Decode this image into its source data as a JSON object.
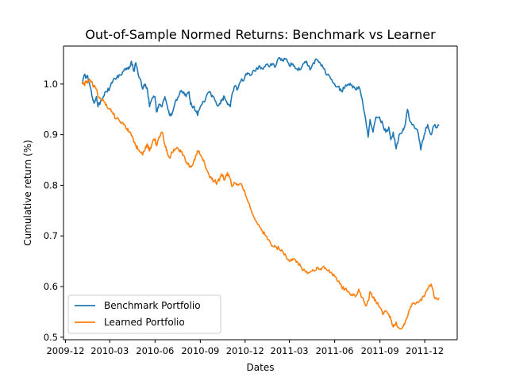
{
  "chart_data": {
    "type": "line",
    "title": "Out-of-Sample Normed Returns: Benchmark vs Learner",
    "xlabel": "Dates",
    "ylabel": "Cumulative return (%)",
    "x_start": "2010-01-04",
    "x_end": "2011-12-30",
    "xlim": [
      "2009-11-27",
      "2012-02-05"
    ],
    "ylim": [
      0.495,
      1.075
    ],
    "x_ticks": [
      {
        "date": "2009-12-01",
        "label": "2009-12"
      },
      {
        "date": "2010-03-01",
        "label": "2010-03"
      },
      {
        "date": "2010-06-01",
        "label": "2010-06"
      },
      {
        "date": "2010-09-01",
        "label": "2010-09"
      },
      {
        "date": "2010-12-01",
        "label": "2010-12"
      },
      {
        "date": "2011-03-01",
        "label": "2011-03"
      },
      {
        "date": "2011-06-01",
        "label": "2011-06"
      },
      {
        "date": "2011-09-01",
        "label": "2011-09"
      },
      {
        "date": "2011-12-01",
        "label": "2011-12"
      }
    ],
    "y_ticks": [
      {
        "value": 0.5,
        "label": "0.5"
      },
      {
        "value": 0.6,
        "label": "0.6"
      },
      {
        "value": 0.7,
        "label": "0.7"
      },
      {
        "value": 0.8,
        "label": "0.8"
      },
      {
        "value": 0.9,
        "label": "0.9"
      },
      {
        "value": 1.0,
        "label": "1.0"
      }
    ],
    "grid": false,
    "legend_position": "lower-left",
    "series": [
      {
        "name": "Benchmark Portfolio",
        "color": "#1f77b4",
        "points": [
          [
            "2010-01-04",
            1.0
          ],
          [
            "2010-01-08",
            1.018
          ],
          [
            "2010-01-12",
            1.012
          ],
          [
            "2010-01-15",
            1.016
          ],
          [
            "2010-01-20",
            0.995
          ],
          [
            "2010-01-25",
            0.972
          ],
          [
            "2010-01-28",
            0.962
          ],
          [
            "2010-02-02",
            0.975
          ],
          [
            "2010-02-05",
            0.955
          ],
          [
            "2010-02-10",
            0.965
          ],
          [
            "2010-02-16",
            0.975
          ],
          [
            "2010-02-22",
            0.985
          ],
          [
            "2010-03-01",
            0.992
          ],
          [
            "2010-03-08",
            1.008
          ],
          [
            "2010-03-15",
            1.012
          ],
          [
            "2010-03-22",
            1.018
          ],
          [
            "2010-03-29",
            1.025
          ],
          [
            "2010-04-05",
            1.032
          ],
          [
            "2010-04-09",
            1.03
          ],
          [
            "2010-04-14",
            1.045
          ],
          [
            "2010-04-19",
            1.025
          ],
          [
            "2010-04-23",
            1.042
          ],
          [
            "2010-04-28",
            1.018
          ],
          [
            "2010-05-03",
            1.008
          ],
          [
            "2010-05-07",
            0.99
          ],
          [
            "2010-05-12",
            1.0
          ],
          [
            "2010-05-17",
            0.985
          ],
          [
            "2010-05-21",
            0.955
          ],
          [
            "2010-05-26",
            0.972
          ],
          [
            "2010-06-01",
            0.975
          ],
          [
            "2010-06-04",
            0.945
          ],
          [
            "2010-06-09",
            0.96
          ],
          [
            "2010-06-15",
            0.955
          ],
          [
            "2010-06-21",
            0.975
          ],
          [
            "2010-06-25",
            0.96
          ],
          [
            "2010-06-30",
            0.94
          ],
          [
            "2010-07-06",
            0.942
          ],
          [
            "2010-07-12",
            0.965
          ],
          [
            "2010-07-19",
            0.975
          ],
          [
            "2010-07-23",
            0.985
          ],
          [
            "2010-07-28",
            0.983
          ],
          [
            "2010-08-03",
            0.975
          ],
          [
            "2010-08-09",
            0.985
          ],
          [
            "2010-08-12",
            0.96
          ],
          [
            "2010-08-18",
            0.955
          ],
          [
            "2010-08-24",
            0.945
          ],
          [
            "2010-08-27",
            0.94
          ],
          [
            "2010-09-01",
            0.955
          ],
          [
            "2010-09-08",
            0.965
          ],
          [
            "2010-09-14",
            0.978
          ],
          [
            "2010-09-20",
            0.985
          ],
          [
            "2010-09-24",
            0.975
          ],
          [
            "2010-09-30",
            0.97
          ],
          [
            "2010-10-05",
            0.958
          ],
          [
            "2010-10-11",
            0.962
          ],
          [
            "2010-10-15",
            0.968
          ],
          [
            "2010-10-20",
            0.975
          ],
          [
            "2010-10-26",
            0.96
          ],
          [
            "2010-11-01",
            0.955
          ],
          [
            "2010-11-05",
            0.982
          ],
          [
            "2010-11-10",
            0.996
          ],
          [
            "2010-11-16",
            0.99
          ],
          [
            "2010-11-22",
            1.005
          ],
          [
            "2010-11-30",
            1.012
          ],
          [
            "2010-12-06",
            1.022
          ],
          [
            "2010-12-13",
            1.018
          ],
          [
            "2010-12-20",
            1.026
          ],
          [
            "2010-12-29",
            1.035
          ],
          [
            "2011-01-05",
            1.03
          ],
          [
            "2011-01-12",
            1.038
          ],
          [
            "2011-01-19",
            1.034
          ],
          [
            "2011-01-26",
            1.04
          ],
          [
            "2011-02-01",
            1.035
          ],
          [
            "2011-02-08",
            1.052
          ],
          [
            "2011-02-15",
            1.046
          ],
          [
            "2011-02-22",
            1.05
          ],
          [
            "2011-03-01",
            1.036
          ],
          [
            "2011-03-08",
            1.04
          ],
          [
            "2011-03-15",
            1.03
          ],
          [
            "2011-03-22",
            1.028
          ],
          [
            "2011-03-29",
            1.04
          ],
          [
            "2011-04-05",
            1.045
          ],
          [
            "2011-04-12",
            1.028
          ],
          [
            "2011-04-19",
            1.042
          ],
          [
            "2011-04-26",
            1.048
          ],
          [
            "2011-05-03",
            1.04
          ],
          [
            "2011-05-10",
            1.03
          ],
          [
            "2011-05-17",
            1.018
          ],
          [
            "2011-05-24",
            1.01
          ],
          [
            "2011-06-01",
            1.0
          ],
          [
            "2011-06-08",
            0.995
          ],
          [
            "2011-06-15",
            0.985
          ],
          [
            "2011-06-22",
            0.995
          ],
          [
            "2011-06-29",
            1.0
          ],
          [
            "2011-07-06",
            0.998
          ],
          [
            "2011-07-13",
            0.99
          ],
          [
            "2011-07-20",
            0.995
          ],
          [
            "2011-07-27",
            0.97
          ],
          [
            "2011-08-03",
            0.93
          ],
          [
            "2011-08-08",
            0.895
          ],
          [
            "2011-08-12",
            0.93
          ],
          [
            "2011-08-18",
            0.905
          ],
          [
            "2011-08-24",
            0.935
          ],
          [
            "2011-08-31",
            0.935
          ],
          [
            "2011-09-07",
            0.92
          ],
          [
            "2011-09-13",
            0.905
          ],
          [
            "2011-09-19",
            0.915
          ],
          [
            "2011-09-23",
            0.89
          ],
          [
            "2011-09-28",
            0.905
          ],
          [
            "2011-10-04",
            0.872
          ],
          [
            "2011-10-10",
            0.9
          ],
          [
            "2011-10-17",
            0.908
          ],
          [
            "2011-10-21",
            0.915
          ],
          [
            "2011-10-27",
            0.95
          ],
          [
            "2011-11-02",
            0.925
          ],
          [
            "2011-11-09",
            0.918
          ],
          [
            "2011-11-16",
            0.91
          ],
          [
            "2011-11-23",
            0.87
          ],
          [
            "2011-11-30",
            0.9
          ],
          [
            "2011-12-07",
            0.92
          ],
          [
            "2011-12-14",
            0.9
          ],
          [
            "2011-12-20",
            0.918
          ],
          [
            "2011-12-27",
            0.915
          ],
          [
            "2011-12-30",
            0.918
          ]
        ]
      },
      {
        "name": "Learned Portfolio",
        "color": "#ff7f0e",
        "points": [
          [
            "2010-01-04",
            1.0
          ],
          [
            "2010-01-08",
            0.998
          ],
          [
            "2010-01-12",
            1.005
          ],
          [
            "2010-01-15",
            1.002
          ],
          [
            "2010-01-20",
            1.008
          ],
          [
            "2010-01-25",
            1.0
          ],
          [
            "2010-01-28",
            0.995
          ],
          [
            "2010-02-02",
            0.99
          ],
          [
            "2010-02-05",
            0.975
          ],
          [
            "2010-02-10",
            0.972
          ],
          [
            "2010-02-16",
            0.968
          ],
          [
            "2010-02-22",
            0.96
          ],
          [
            "2010-03-01",
            0.95
          ],
          [
            "2010-03-08",
            0.94
          ],
          [
            "2010-03-15",
            0.932
          ],
          [
            "2010-03-22",
            0.925
          ],
          [
            "2010-03-29",
            0.92
          ],
          [
            "2010-04-05",
            0.912
          ],
          [
            "2010-04-09",
            0.905
          ],
          [
            "2010-04-14",
            0.898
          ],
          [
            "2010-04-19",
            0.885
          ],
          [
            "2010-04-23",
            0.878
          ],
          [
            "2010-04-28",
            0.87
          ],
          [
            "2010-05-03",
            0.865
          ],
          [
            "2010-05-07",
            0.86
          ],
          [
            "2010-05-12",
            0.872
          ],
          [
            "2010-05-17",
            0.88
          ],
          [
            "2010-05-21",
            0.868
          ],
          [
            "2010-05-26",
            0.882
          ],
          [
            "2010-06-01",
            0.892
          ],
          [
            "2010-06-04",
            0.878
          ],
          [
            "2010-06-09",
            0.895
          ],
          [
            "2010-06-15",
            0.905
          ],
          [
            "2010-06-21",
            0.88
          ],
          [
            "2010-06-25",
            0.87
          ],
          [
            "2010-06-30",
            0.855
          ],
          [
            "2010-07-06",
            0.865
          ],
          [
            "2010-07-12",
            0.872
          ],
          [
            "2010-07-19",
            0.87
          ],
          [
            "2010-07-23",
            0.866
          ],
          [
            "2010-07-28",
            0.86
          ],
          [
            "2010-08-03",
            0.845
          ],
          [
            "2010-08-09",
            0.84
          ],
          [
            "2010-08-12",
            0.838
          ],
          [
            "2010-08-18",
            0.845
          ],
          [
            "2010-08-24",
            0.86
          ],
          [
            "2010-08-27",
            0.868
          ],
          [
            "2010-09-01",
            0.86
          ],
          [
            "2010-09-08",
            0.85
          ],
          [
            "2010-09-14",
            0.83
          ],
          [
            "2010-09-20",
            0.815
          ],
          [
            "2010-09-24",
            0.812
          ],
          [
            "2010-09-30",
            0.808
          ],
          [
            "2010-10-05",
            0.805
          ],
          [
            "2010-10-11",
            0.815
          ],
          [
            "2010-10-15",
            0.822
          ],
          [
            "2010-10-20",
            0.81
          ],
          [
            "2010-10-26",
            0.825
          ],
          [
            "2010-11-01",
            0.812
          ],
          [
            "2010-11-05",
            0.798
          ],
          [
            "2010-11-10",
            0.805
          ],
          [
            "2010-11-16",
            0.8
          ],
          [
            "2010-11-22",
            0.803
          ],
          [
            "2010-11-30",
            0.79
          ],
          [
            "2010-12-06",
            0.77
          ],
          [
            "2010-12-13",
            0.752
          ],
          [
            "2010-12-20",
            0.735
          ],
          [
            "2010-12-29",
            0.722
          ],
          [
            "2011-01-05",
            0.71
          ],
          [
            "2011-01-12",
            0.7
          ],
          [
            "2011-01-19",
            0.692
          ],
          [
            "2011-01-26",
            0.68
          ],
          [
            "2011-02-01",
            0.678
          ],
          [
            "2011-02-08",
            0.675
          ],
          [
            "2011-02-15",
            0.67
          ],
          [
            "2011-02-22",
            0.66
          ],
          [
            "2011-03-01",
            0.65
          ],
          [
            "2011-03-08",
            0.655
          ],
          [
            "2011-03-15",
            0.648
          ],
          [
            "2011-03-22",
            0.645
          ],
          [
            "2011-03-29",
            0.632
          ],
          [
            "2011-04-05",
            0.63
          ],
          [
            "2011-04-12",
            0.628
          ],
          [
            "2011-04-19",
            0.632
          ],
          [
            "2011-04-26",
            0.638
          ],
          [
            "2011-05-03",
            0.635
          ],
          [
            "2011-05-10",
            0.64
          ],
          [
            "2011-05-17",
            0.632
          ],
          [
            "2011-05-24",
            0.628
          ],
          [
            "2011-06-01",
            0.62
          ],
          [
            "2011-06-08",
            0.61
          ],
          [
            "2011-06-15",
            0.6
          ],
          [
            "2011-06-22",
            0.595
          ],
          [
            "2011-06-29",
            0.59
          ],
          [
            "2011-07-06",
            0.585
          ],
          [
            "2011-07-13",
            0.58
          ],
          [
            "2011-07-20",
            0.595
          ],
          [
            "2011-07-27",
            0.578
          ],
          [
            "2011-08-03",
            0.562
          ],
          [
            "2011-08-08",
            0.572
          ],
          [
            "2011-08-12",
            0.59
          ],
          [
            "2011-08-18",
            0.578
          ],
          [
            "2011-08-24",
            0.57
          ],
          [
            "2011-08-31",
            0.56
          ],
          [
            "2011-09-07",
            0.545
          ],
          [
            "2011-09-13",
            0.552
          ],
          [
            "2011-09-19",
            0.545
          ],
          [
            "2011-09-23",
            0.535
          ],
          [
            "2011-09-28",
            0.52
          ],
          [
            "2011-10-04",
            0.53
          ],
          [
            "2011-10-10",
            0.518
          ],
          [
            "2011-10-17",
            0.52
          ],
          [
            "2011-10-21",
            0.525
          ],
          [
            "2011-10-27",
            0.54
          ],
          [
            "2011-11-02",
            0.56
          ],
          [
            "2011-11-09",
            0.568
          ],
          [
            "2011-11-16",
            0.57
          ],
          [
            "2011-11-23",
            0.575
          ],
          [
            "2011-11-30",
            0.58
          ],
          [
            "2011-12-07",
            0.595
          ],
          [
            "2011-12-14",
            0.605
          ],
          [
            "2011-12-20",
            0.58
          ],
          [
            "2011-12-27",
            0.575
          ],
          [
            "2011-12-30",
            0.578
          ]
        ]
      }
    ]
  }
}
